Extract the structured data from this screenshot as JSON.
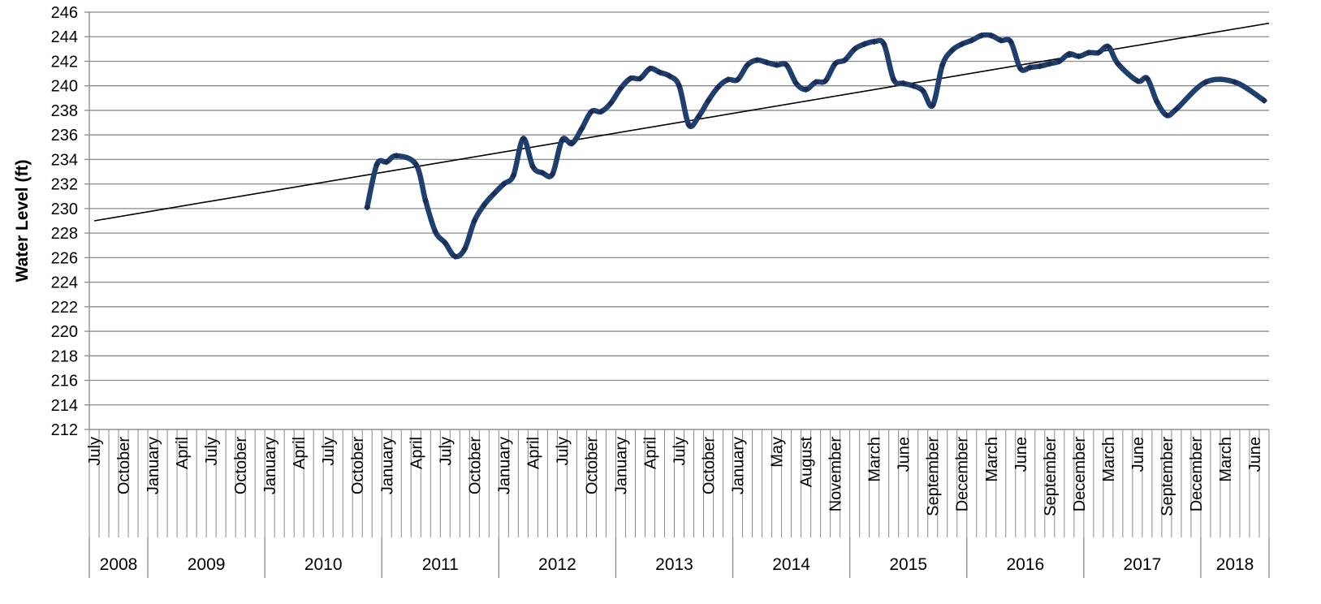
{
  "chart_data": {
    "type": "line",
    "title": "",
    "xlabel": "",
    "ylabel": "Water Level (ft)",
    "ylim": [
      212,
      246
    ],
    "y_ticks": [
      "212",
      "214",
      "216",
      "218",
      "220",
      "222",
      "224",
      "226",
      "228",
      "230",
      "232",
      "234",
      "236",
      "238",
      "240",
      "242",
      "244",
      "246"
    ],
    "grid": "horizontal",
    "legend": "none",
    "x_range": [
      "2008-07",
      "2018-07"
    ],
    "month_tick_labels": [
      {
        "date": "2008-07",
        "label": "July"
      },
      {
        "date": "2008-10",
        "label": "October"
      },
      {
        "date": "2009-01",
        "label": "January"
      },
      {
        "date": "2009-04",
        "label": "April"
      },
      {
        "date": "2009-07",
        "label": "July"
      },
      {
        "date": "2009-10",
        "label": "October"
      },
      {
        "date": "2010-01",
        "label": "January"
      },
      {
        "date": "2010-04",
        "label": "April"
      },
      {
        "date": "2010-07",
        "label": "July"
      },
      {
        "date": "2010-10",
        "label": "October"
      },
      {
        "date": "2011-01",
        "label": "January"
      },
      {
        "date": "2011-04",
        "label": "April"
      },
      {
        "date": "2011-07",
        "label": "July"
      },
      {
        "date": "2011-10",
        "label": "October"
      },
      {
        "date": "2012-01",
        "label": "January"
      },
      {
        "date": "2012-04",
        "label": "April"
      },
      {
        "date": "2012-07",
        "label": "July"
      },
      {
        "date": "2012-10",
        "label": "October"
      },
      {
        "date": "2013-01",
        "label": "January"
      },
      {
        "date": "2013-04",
        "label": "April"
      },
      {
        "date": "2013-07",
        "label": "July"
      },
      {
        "date": "2013-10",
        "label": "October"
      },
      {
        "date": "2014-01",
        "label": "January"
      },
      {
        "date": "2014-05",
        "label": "May"
      },
      {
        "date": "2014-08",
        "label": "August"
      },
      {
        "date": "2014-11",
        "label": "November"
      },
      {
        "date": "2015-03",
        "label": "March"
      },
      {
        "date": "2015-06",
        "label": "June"
      },
      {
        "date": "2015-09",
        "label": "September"
      },
      {
        "date": "2015-12",
        "label": "December"
      },
      {
        "date": "2016-03",
        "label": "March"
      },
      {
        "date": "2016-06",
        "label": "June"
      },
      {
        "date": "2016-09",
        "label": "September"
      },
      {
        "date": "2016-12",
        "label": "December"
      },
      {
        "date": "2017-03",
        "label": "March"
      },
      {
        "date": "2017-06",
        "label": "June"
      },
      {
        "date": "2017-09",
        "label": "September"
      },
      {
        "date": "2017-12",
        "label": "December"
      },
      {
        "date": "2018-03",
        "label": "March"
      },
      {
        "date": "2018-06",
        "label": "June"
      }
    ],
    "year_labels": [
      {
        "label": "2008",
        "start": "2008-07",
        "end": "2008-12"
      },
      {
        "label": "2009",
        "start": "2009-01",
        "end": "2009-12"
      },
      {
        "label": "2010",
        "start": "2010-01",
        "end": "2010-12"
      },
      {
        "label": "2011",
        "start": "2011-01",
        "end": "2011-12"
      },
      {
        "label": "2012",
        "start": "2012-01",
        "end": "2012-12"
      },
      {
        "label": "2013",
        "start": "2013-01",
        "end": "2013-12"
      },
      {
        "label": "2014",
        "start": "2014-01",
        "end": "2014-12"
      },
      {
        "label": "2015",
        "start": "2015-01",
        "end": "2015-12"
      },
      {
        "label": "2016",
        "start": "2016-01",
        "end": "2016-12"
      },
      {
        "label": "2017",
        "start": "2017-01",
        "end": "2017-12"
      },
      {
        "label": "2018",
        "start": "2018-01",
        "end": "2018-07"
      }
    ],
    "series": [
      {
        "color": "#1f3f6e",
        "marker_color": "#1a2c55",
        "points": [
          {
            "x": "2010-11",
            "y": 230.1
          },
          {
            "x": "2010-12",
            "y": 233.6
          },
          {
            "x": "2011-01",
            "y": 233.8
          },
          {
            "x": "2011-02",
            "y": 234.3
          },
          {
            "x": "2011-04",
            "y": 233.6
          },
          {
            "x": "2011-05",
            "y": 230.6
          },
          {
            "x": "2011-06",
            "y": 228.1
          },
          {
            "x": "2011-07",
            "y": 227.2
          },
          {
            "x": "2011-08",
            "y": 226.1
          },
          {
            "x": "2011-09",
            "y": 226.7
          },
          {
            "x": "2011-10",
            "y": 229.0
          },
          {
            "x": "2011-11",
            "y": 230.3
          },
          {
            "x": "2011-12",
            "y": 231.2
          },
          {
            "x": "2012-01",
            "y": 232.0
          },
          {
            "x": "2012-02",
            "y": 232.7
          },
          {
            "x": "2012-03",
            "y": 235.7
          },
          {
            "x": "2012-04",
            "y": 233.4
          },
          {
            "x": "2012-05",
            "y": 232.9
          },
          {
            "x": "2012-06",
            "y": 232.8
          },
          {
            "x": "2012-07",
            "y": 235.6
          },
          {
            "x": "2012-08",
            "y": 235.3
          },
          {
            "x": "2012-09",
            "y": 236.5
          },
          {
            "x": "2012-10",
            "y": 237.9
          },
          {
            "x": "2012-11",
            "y": 237.9
          },
          {
            "x": "2012-12",
            "y": 238.6
          },
          {
            "x": "2013-01",
            "y": 239.8
          },
          {
            "x": "2013-02",
            "y": 240.6
          },
          {
            "x": "2013-03",
            "y": 240.6
          },
          {
            "x": "2013-04",
            "y": 241.4
          },
          {
            "x": "2013-05",
            "y": 241.1
          },
          {
            "x": "2013-06",
            "y": 240.8
          },
          {
            "x": "2013-07",
            "y": 240.0
          },
          {
            "x": "2013-08",
            "y": 236.8
          },
          {
            "x": "2013-09",
            "y": 237.5
          },
          {
            "x": "2013-10",
            "y": 238.8
          },
          {
            "x": "2013-11",
            "y": 239.9
          },
          {
            "x": "2013-12",
            "y": 240.5
          },
          {
            "x": "2014-01",
            "y": 240.5
          },
          {
            "x": "2014-02",
            "y": 241.7
          },
          {
            "x": "2014-03",
            "y": 242.1
          },
          {
            "x": "2014-04",
            "y": 241.9
          },
          {
            "x": "2014-05",
            "y": 241.7
          },
          {
            "x": "2014-06",
            "y": 241.7
          },
          {
            "x": "2014-07",
            "y": 240.2
          },
          {
            "x": "2014-08",
            "y": 239.7
          },
          {
            "x": "2014-09",
            "y": 240.3
          },
          {
            "x": "2014-10",
            "y": 240.4
          },
          {
            "x": "2014-11",
            "y": 241.8
          },
          {
            "x": "2014-12",
            "y": 242.1
          },
          {
            "x": "2015-01",
            "y": 243.0
          },
          {
            "x": "2015-02",
            "y": 243.4
          },
          {
            "x": "2015-03",
            "y": 243.6
          },
          {
            "x": "2015-04",
            "y": 243.4
          },
          {
            "x": "2015-05",
            "y": 240.5
          },
          {
            "x": "2015-06",
            "y": 240.2
          },
          {
            "x": "2015-07",
            "y": 240.0
          },
          {
            "x": "2015-08",
            "y": 239.6
          },
          {
            "x": "2015-09",
            "y": 238.4
          },
          {
            "x": "2015-10",
            "y": 241.7
          },
          {
            "x": "2015-11",
            "y": 242.9
          },
          {
            "x": "2015-12",
            "y": 243.4
          },
          {
            "x": "2016-01",
            "y": 243.7
          },
          {
            "x": "2016-02",
            "y": 244.1
          },
          {
            "x": "2016-03",
            "y": 244.1
          },
          {
            "x": "2016-04",
            "y": 243.7
          },
          {
            "x": "2016-05",
            "y": 243.6
          },
          {
            "x": "2016-06",
            "y": 241.4
          },
          {
            "x": "2016-07",
            "y": 241.5
          },
          {
            "x": "2016-08",
            "y": 241.6
          },
          {
            "x": "2016-09",
            "y": 241.8
          },
          {
            "x": "2016-10",
            "y": 242.0
          },
          {
            "x": "2016-11",
            "y": 242.6
          },
          {
            "x": "2016-12",
            "y": 242.4
          },
          {
            "x": "2017-01",
            "y": 242.7
          },
          {
            "x": "2017-02",
            "y": 242.7
          },
          {
            "x": "2017-03",
            "y": 243.2
          },
          {
            "x": "2017-04",
            "y": 241.8
          },
          {
            "x": "2017-06",
            "y": 240.4
          },
          {
            "x": "2017-07",
            "y": 240.6
          },
          {
            "x": "2017-08",
            "y": 238.7
          },
          {
            "x": "2017-09",
            "y": 237.6
          },
          {
            "x": "2017-10",
            "y": 238.1
          },
          {
            "x": "2018-01",
            "y": 240.3
          },
          {
            "x": "2018-04",
            "y": 240.3
          },
          {
            "x": "2018-07",
            "y": 238.8
          }
        ]
      }
    ],
    "trendline": {
      "type": "linear",
      "color": "#000000",
      "start": {
        "x": "2008-07",
        "y": 229.0
      },
      "end": {
        "x": "2018-07",
        "y": 245.1
      }
    }
  }
}
